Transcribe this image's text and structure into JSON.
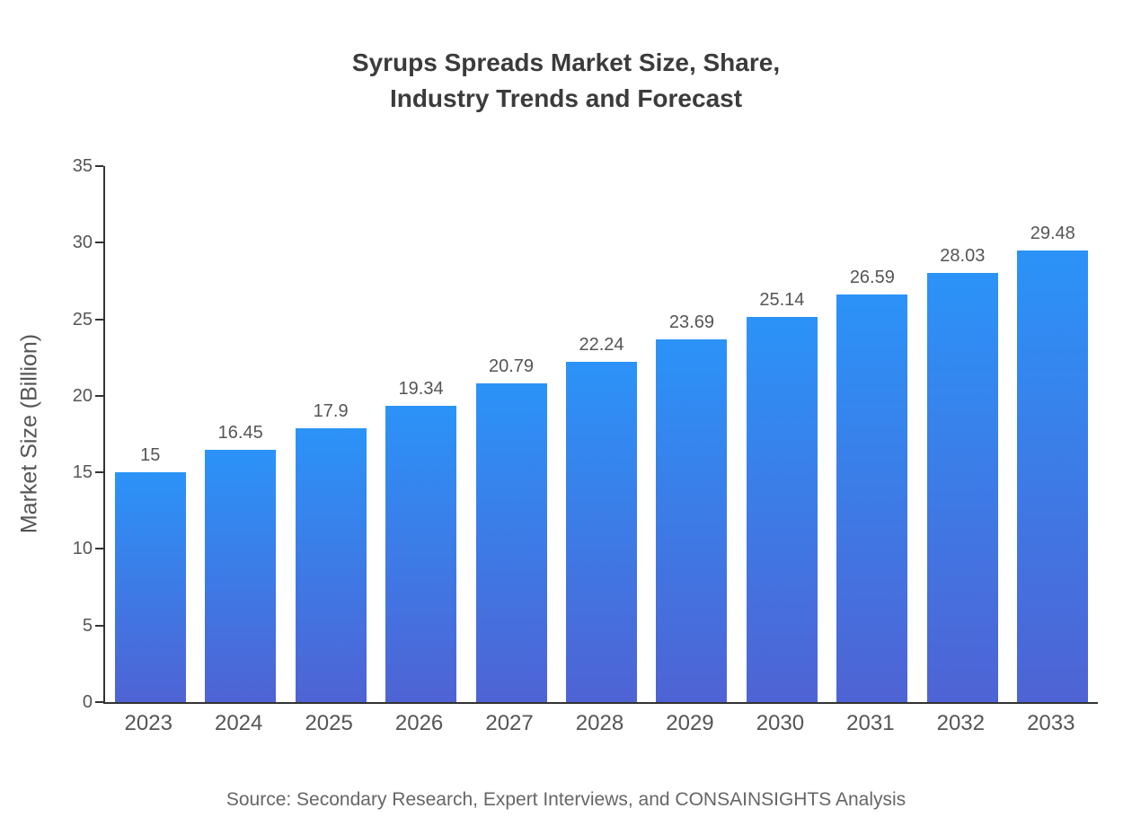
{
  "page": {
    "title": "Syrups Spreads Market Size, Share,\nIndustry Trends and Forecast",
    "source": "Source: Secondary Research, Expert Interviews, and CONSAINSIGHTS Analysis"
  },
  "chart_data": {
    "type": "bar",
    "title": "Syrups Spreads Market Size, Share, Industry Trends and Forecast",
    "categories": [
      "2023",
      "2024",
      "2025",
      "2026",
      "2027",
      "2028",
      "2029",
      "2030",
      "2031",
      "2032",
      "2033"
    ],
    "values": [
      15,
      16.45,
      17.9,
      19.34,
      20.79,
      22.24,
      23.69,
      25.14,
      26.59,
      28.03,
      29.48
    ],
    "value_labels": [
      "15",
      "16.45",
      "17.9",
      "19.34",
      "20.79",
      "22.24",
      "23.69",
      "25.14",
      "26.59",
      "28.03",
      "29.48"
    ],
    "xlabel": "",
    "ylabel": "Market Size (Billion)",
    "ylim": [
      0,
      35
    ],
    "yticks": [
      0,
      5,
      10,
      15,
      20,
      25,
      30,
      35
    ],
    "grid": false,
    "legend": "none",
    "colors": {
      "bar_gradient_top": "#2b93f8",
      "bar_gradient_bottom": "#4f63d4",
      "axis": "#333333",
      "tick_text": "#555555",
      "value_label_text": "#555555",
      "title_text": "#3b3b3b",
      "source_text": "#666666"
    }
  }
}
